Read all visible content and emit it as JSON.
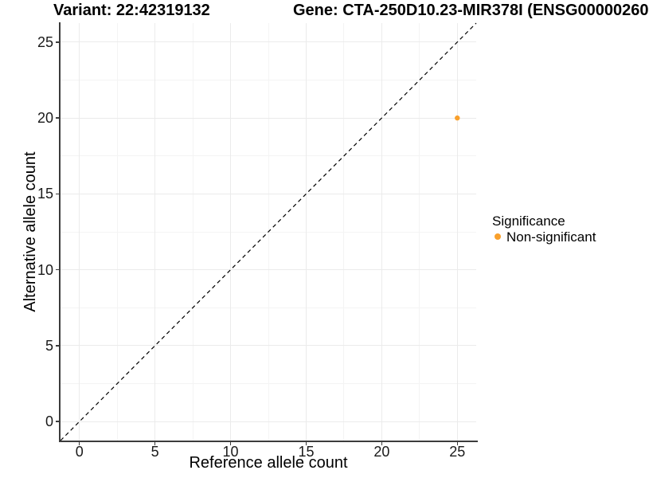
{
  "titles": {
    "variant": "Variant: 22:42319132",
    "gene": "Gene: CTA-250D10.23-MIR378I (ENSG00000260"
  },
  "colors": {
    "point": "#F9A02C",
    "grid_major": "#ebebeb",
    "grid_minor": "#f4f4f4",
    "axis_line": "#3c3c3c",
    "reference_line": "#000000"
  },
  "chart_data": {
    "type": "scatter",
    "title_left": "Variant: 22:42319132",
    "title_right": "Gene: CTA-250D10.23-MIR378I (ENSG00000260",
    "xlabel": "Reference allele count",
    "ylabel": "Alternative allele count",
    "xlim": [
      -1.25,
      26.25
    ],
    "ylim": [
      -1.25,
      26.25
    ],
    "x_ticks": [
      0,
      5,
      10,
      15,
      20,
      25
    ],
    "y_ticks": [
      0,
      5,
      10,
      15,
      20,
      25
    ],
    "x_minor_ticks": [
      2.5,
      7.5,
      12.5,
      17.5,
      22.5
    ],
    "y_minor_ticks": [
      2.5,
      7.5,
      12.5,
      17.5,
      22.5
    ],
    "grid": "major+minor",
    "reference_line": {
      "kind": "identity y=x",
      "style": "dashed"
    },
    "series": [
      {
        "name": "Non-significant",
        "color": "#F9A02C",
        "points": [
          {
            "x": 25,
            "y": 20
          }
        ]
      }
    ],
    "legend": {
      "title": "Significance",
      "position": "right",
      "entries": [
        {
          "label": "Non-significant",
          "color": "#F9A02C"
        }
      ]
    }
  }
}
